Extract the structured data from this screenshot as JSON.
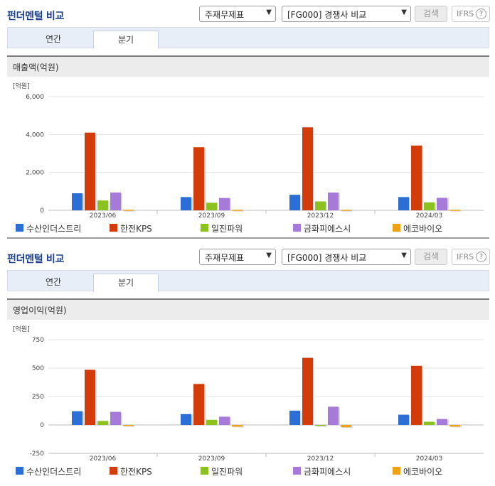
{
  "sections": [
    {
      "title": "펀더멘털 비교",
      "select_type": "주재무제표",
      "select_group": "[FG000] 경쟁사 비교",
      "search_label": "검색",
      "ifrs_label": "IFRS",
      "help_label": "?",
      "tabs": [
        {
          "label": "연간"
        },
        {
          "label": "분기"
        }
      ],
      "active_tab": "분기",
      "metric_label": "매출액(억원)"
    },
    {
      "title": "펀더멘털 비교",
      "select_type": "주재무제표",
      "select_group": "[FG000] 경쟁사 비교",
      "search_label": "검색",
      "ifrs_label": "IFRS",
      "help_label": "?",
      "tabs": [
        {
          "label": "연간"
        },
        {
          "label": "분기"
        }
      ],
      "active_tab": "분기",
      "metric_label": "영업이익(억원)"
    }
  ],
  "legend": [
    {
      "name": "수산인더스트리",
      "color": "#2b6fd6"
    },
    {
      "name": "한전KPS",
      "color": "#d43b0a"
    },
    {
      "name": "일진파워",
      "color": "#8cc21f"
    },
    {
      "name": "금화피에스시",
      "color": "#a57ad8"
    },
    {
      "name": "에코바이오",
      "color": "#f0a216"
    }
  ],
  "chart_data": [
    {
      "type": "bar",
      "title": "매출액(억원)",
      "unit_label": "[억원]",
      "categories": [
        "2023/06",
        "2023/09",
        "2023/12",
        "2024/03"
      ],
      "ylim": [
        0,
        6000
      ],
      "yticks": [
        0,
        2000,
        4000,
        6000
      ],
      "ytick_labels": [
        "0",
        "2,000",
        "4,000",
        "6,000"
      ],
      "grid": true,
      "legend_position": "bottom",
      "series": [
        {
          "name": "수산인더스트리",
          "values": [
            900,
            700,
            820,
            700
          ]
        },
        {
          "name": "한전KPS",
          "values": [
            4100,
            3330,
            4380,
            3420
          ]
        },
        {
          "name": "일진파워",
          "values": [
            520,
            400,
            470,
            420
          ]
        },
        {
          "name": "금화피에스시",
          "values": [
            940,
            650,
            940,
            660
          ]
        },
        {
          "name": "에코바이오",
          "values": [
            30,
            30,
            30,
            30
          ]
        }
      ]
    },
    {
      "type": "bar",
      "title": "영업이익(억원)",
      "unit_label": "[억원]",
      "categories": [
        "2023/06",
        "2023/09",
        "2023/12",
        "2024/03"
      ],
      "ylim": [
        -250,
        750
      ],
      "yticks": [
        -250,
        0,
        250,
        500,
        750
      ],
      "ytick_labels": [
        "-250",
        "0",
        "250",
        "500",
        "750"
      ],
      "grid": true,
      "legend_position": "bottom",
      "series": [
        {
          "name": "수산인더스트리",
          "values": [
            120,
            95,
            125,
            90
          ]
        },
        {
          "name": "한전KPS",
          "values": [
            485,
            360,
            590,
            520
          ]
        },
        {
          "name": "일진파워",
          "values": [
            35,
            45,
            0,
            28
          ]
        },
        {
          "name": "금화피에스시",
          "values": [
            115,
            72,
            160,
            52
          ]
        },
        {
          "name": "에코바이오",
          "values": [
            -10,
            -15,
            -20,
            -15
          ]
        }
      ]
    }
  ]
}
